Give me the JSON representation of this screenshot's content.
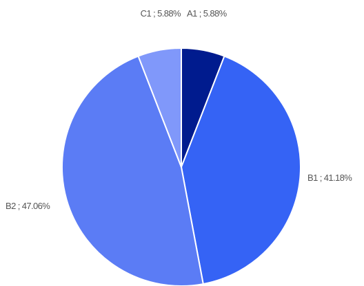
{
  "chart_data": {
    "type": "pie",
    "start_angle_deg": 0,
    "direction": "clockwise",
    "label_format": "{name} ; {pct}",
    "slices": [
      {
        "name": "A1",
        "value": 5.88,
        "label": "5.88%",
        "color": "#001b8e"
      },
      {
        "name": "B1",
        "value": 41.18,
        "label": "41.18%",
        "color": "#3563f5"
      },
      {
        "name": "B2",
        "value": 47.06,
        "label": "47.06%",
        "color": "#5b7cf5"
      },
      {
        "name": "C1",
        "value": 5.88,
        "label": "5.88%",
        "color": "#8098fa"
      }
    ]
  }
}
